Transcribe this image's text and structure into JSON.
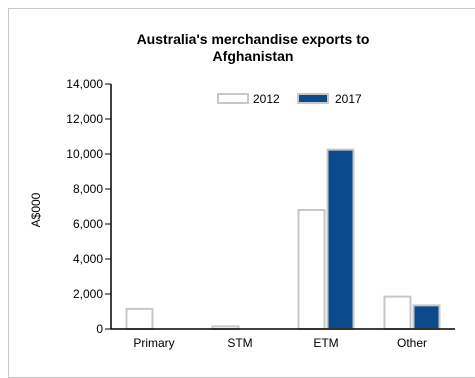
{
  "chart_data": {
    "type": "bar",
    "title_lines": [
      "Australia's merchandise exports to",
      "Afghanistan"
    ],
    "xlabel": "",
    "ylabel": "A$000",
    "categories": [
      "Primary",
      "STM",
      "ETM",
      "Other"
    ],
    "series": [
      {
        "name": "2012",
        "values": [
          1150,
          150,
          6800,
          1850
        ]
      },
      {
        "name": "2017",
        "values": [
          0,
          0,
          10250,
          1350
        ]
      }
    ],
    "ylim": [
      0,
      14000
    ],
    "yticks": [
      0,
      2000,
      4000,
      6000,
      8000,
      10000,
      12000,
      14000
    ],
    "ytick_labels": [
      "0",
      "2,000",
      "4,000",
      "6,000",
      "8,000",
      "10,000",
      "12,000",
      "14,000"
    ],
    "grid": false,
    "legend_position": "top-center"
  },
  "colors": {
    "series_2012_fill": "#ffffff",
    "series_2012_stroke": "#c8c8c8",
    "series_2017_fill": "#0b4a8b",
    "series_2017_stroke": "#c8c8c8",
    "axis": "#000000"
  }
}
